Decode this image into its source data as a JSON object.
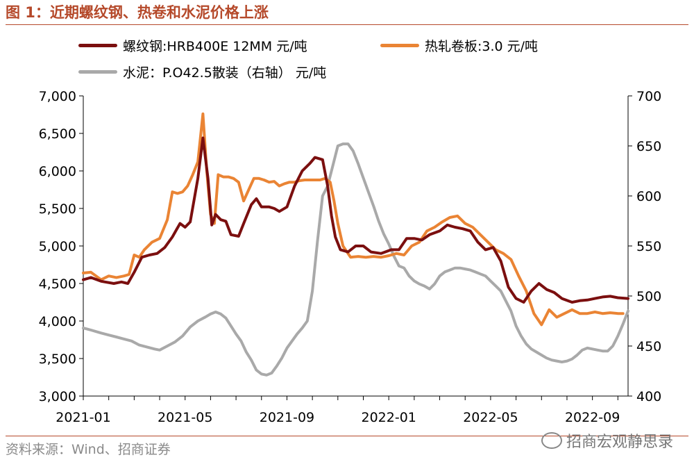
{
  "header": {
    "title": "图 1：近期螺纹钢、热卷和水泥价格上涨"
  },
  "footer": {
    "source": "资料来源：Wind、招商证券",
    "watermark": "招商宏观静思录"
  },
  "colors": {
    "rebar": "#7b0f0f",
    "hot_coil": "#ea8434",
    "cement": "#a9a9a9",
    "accent": "#b5492a"
  },
  "chart_data": {
    "type": "line",
    "title": "近期螺纹钢、热卷和水泥价格上涨",
    "x_ticks": [
      "2021-01",
      "2021-05",
      "2021-09",
      "2022-01",
      "2022-05",
      "2022-09"
    ],
    "x_tick_positions": [
      0,
      4,
      8,
      12,
      16,
      20
    ],
    "x_range": [
      0,
      21.4
    ],
    "y_left": {
      "range": [
        3000,
        7000
      ],
      "ticks": [
        "3,000",
        "3,500",
        "4,000",
        "4,500",
        "5,000",
        "5,500",
        "6,000",
        "6,500",
        "7,000"
      ]
    },
    "y_right": {
      "range": [
        400,
        700
      ],
      "ticks": [
        "400",
        "450",
        "500",
        "550",
        "600",
        "650",
        "700"
      ]
    },
    "legend_position": "top",
    "series": [
      {
        "name": "螺纹钢:HRB400E 12MM 元/吨",
        "axis": "left",
        "x": [
          0,
          0.3,
          0.7,
          1.2,
          1.5,
          1.75,
          2.0,
          2.3,
          2.6,
          2.9,
          3.2,
          3.5,
          3.8,
          4.0,
          4.2,
          4.5,
          4.7,
          4.9,
          5.05,
          5.2,
          5.4,
          5.6,
          5.8,
          6.1,
          6.3,
          6.6,
          6.8,
          7.0,
          7.3,
          7.5,
          7.7,
          8.0,
          8.3,
          8.6,
          8.9,
          9.1,
          9.4,
          9.6,
          9.75,
          9.9,
          10.1,
          10.4,
          10.7,
          11.0,
          11.3,
          11.7,
          12.1,
          12.4,
          12.7,
          13.0,
          13.3,
          13.6,
          14.0,
          14.3,
          14.6,
          14.9,
          15.2,
          15.5,
          15.8,
          16.1,
          16.4,
          16.7,
          17.0,
          17.3,
          17.6,
          17.9,
          18.2,
          18.5,
          18.8,
          19.2,
          19.5,
          19.8,
          20.1,
          20.4,
          20.7,
          21.0,
          21.4
        ],
        "values": [
          4550,
          4580,
          4530,
          4500,
          4520,
          4500,
          4650,
          4850,
          4880,
          4900,
          4980,
          5120,
          5300,
          5250,
          5320,
          5900,
          6440,
          5900,
          5280,
          5420,
          5350,
          5330,
          5150,
          5130,
          5300,
          5550,
          5630,
          5520,
          5520,
          5500,
          5460,
          5520,
          5800,
          6000,
          6100,
          6180,
          6150,
          5800,
          5400,
          5120,
          4950,
          4920,
          5000,
          5000,
          4920,
          4900,
          4950,
          4950,
          5100,
          5100,
          5080,
          5150,
          5200,
          5280,
          5250,
          5230,
          5200,
          5050,
          4950,
          4980,
          4800,
          4450,
          4300,
          4250,
          4400,
          4500,
          4420,
          4380,
          4300,
          4250,
          4270,
          4280,
          4300,
          4320,
          4330,
          4310,
          4300
        ]
      },
      {
        "name": "热轧卷板:3.0 元/吨",
        "axis": "left",
        "x": [
          0,
          0.3,
          0.7,
          1.0,
          1.3,
          1.6,
          1.8,
          2.0,
          2.2,
          2.4,
          2.7,
          3.0,
          3.3,
          3.5,
          3.7,
          3.9,
          4.1,
          4.3,
          4.5,
          4.7,
          4.85,
          5.0,
          5.15,
          5.3,
          5.5,
          5.7,
          5.9,
          6.1,
          6.3,
          6.5,
          6.7,
          6.9,
          7.1,
          7.3,
          7.5,
          7.7,
          7.9,
          8.1,
          8.3,
          8.5,
          8.7,
          8.9,
          9.1,
          9.3,
          9.5,
          9.7,
          9.85,
          10.0,
          10.2,
          10.5,
          10.8,
          11.1,
          11.4,
          11.7,
          12.0,
          12.3,
          12.6,
          12.9,
          13.2,
          13.5,
          13.8,
          14.1,
          14.4,
          14.7,
          15.0,
          15.3,
          15.6,
          15.9,
          16.2,
          16.5,
          16.8,
          17.1,
          17.4,
          17.7,
          18.0,
          18.3,
          18.6,
          18.9,
          19.2,
          19.5,
          19.8,
          20.1,
          20.4,
          20.7,
          21.0,
          21.2
        ],
        "values": [
          4640,
          4650,
          4550,
          4600,
          4580,
          4600,
          4620,
          4880,
          4850,
          4950,
          5050,
          5100,
          5350,
          5720,
          5700,
          5720,
          5800,
          5950,
          6120,
          6760,
          6000,
          5420,
          5300,
          5950,
          5920,
          5920,
          5900,
          5850,
          5600,
          5750,
          5900,
          5900,
          5880,
          5850,
          5860,
          5800,
          5830,
          5850,
          5850,
          5870,
          5880,
          5880,
          5880,
          5880,
          5900,
          5850,
          5600,
          5300,
          5000,
          4850,
          4860,
          4850,
          4860,
          4850,
          4870,
          4900,
          4880,
          5000,
          5050,
          5200,
          5250,
          5320,
          5380,
          5400,
          5300,
          5250,
          5150,
          5050,
          4950,
          4900,
          4820,
          4600,
          4400,
          4100,
          3950,
          4150,
          4050,
          4100,
          4150,
          4100,
          4100,
          4120,
          4100,
          4110,
          4100,
          4100
        ]
      },
      {
        "name": "水泥：P.O42.5散装（右轴） 元/吨",
        "axis": "right",
        "x": [
          0,
          0.3,
          0.7,
          1.0,
          1.3,
          1.6,
          1.9,
          2.2,
          2.5,
          2.8,
          3.0,
          3.3,
          3.6,
          3.9,
          4.2,
          4.5,
          4.8,
          5.0,
          5.2,
          5.4,
          5.6,
          5.8,
          6.0,
          6.2,
          6.4,
          6.6,
          6.8,
          7.0,
          7.2,
          7.4,
          7.6,
          7.8,
          8.0,
          8.2,
          8.4,
          8.6,
          8.8,
          9.0,
          9.2,
          9.4,
          9.6,
          9.8,
          10.0,
          10.2,
          10.4,
          10.6,
          10.8,
          11.0,
          11.2,
          11.4,
          11.6,
          11.8,
          12.0,
          12.2,
          12.4,
          12.6,
          12.8,
          13.0,
          13.2,
          13.4,
          13.6,
          13.8,
          14.0,
          14.2,
          14.4,
          14.6,
          14.8,
          15.0,
          15.2,
          15.4,
          15.6,
          15.8,
          16.0,
          16.2,
          16.4,
          16.6,
          16.8,
          17.0,
          17.2,
          17.4,
          17.6,
          17.8,
          18.0,
          18.2,
          18.4,
          18.6,
          18.8,
          19.0,
          19.2,
          19.4,
          19.6,
          19.8,
          20.0,
          20.2,
          20.4,
          20.6,
          20.8,
          21.0,
          21.2,
          21.4
        ],
        "values": [
          468,
          466,
          463,
          461,
          459,
          457,
          455,
          451,
          449,
          447,
          446,
          450,
          454,
          460,
          469,
          475,
          479,
          482,
          484,
          482,
          478,
          470,
          462,
          455,
          444,
          436,
          426,
          422,
          421,
          423,
          430,
          438,
          448,
          455,
          462,
          468,
          475,
          505,
          555,
          600,
          610,
          630,
          650,
          652,
          652,
          645,
          632,
          618,
          604,
          590,
          575,
          562,
          552,
          540,
          530,
          528,
          520,
          515,
          512,
          510,
          507,
          512,
          520,
          524,
          526,
          528,
          528,
          527,
          526,
          524,
          522,
          520,
          515,
          510,
          505,
          495,
          485,
          470,
          460,
          452,
          447,
          444,
          441,
          438,
          436,
          435,
          434,
          435,
          437,
          441,
          446,
          448,
          447,
          446,
          445,
          445,
          450,
          460,
          472,
          485
        ]
      }
    ]
  }
}
